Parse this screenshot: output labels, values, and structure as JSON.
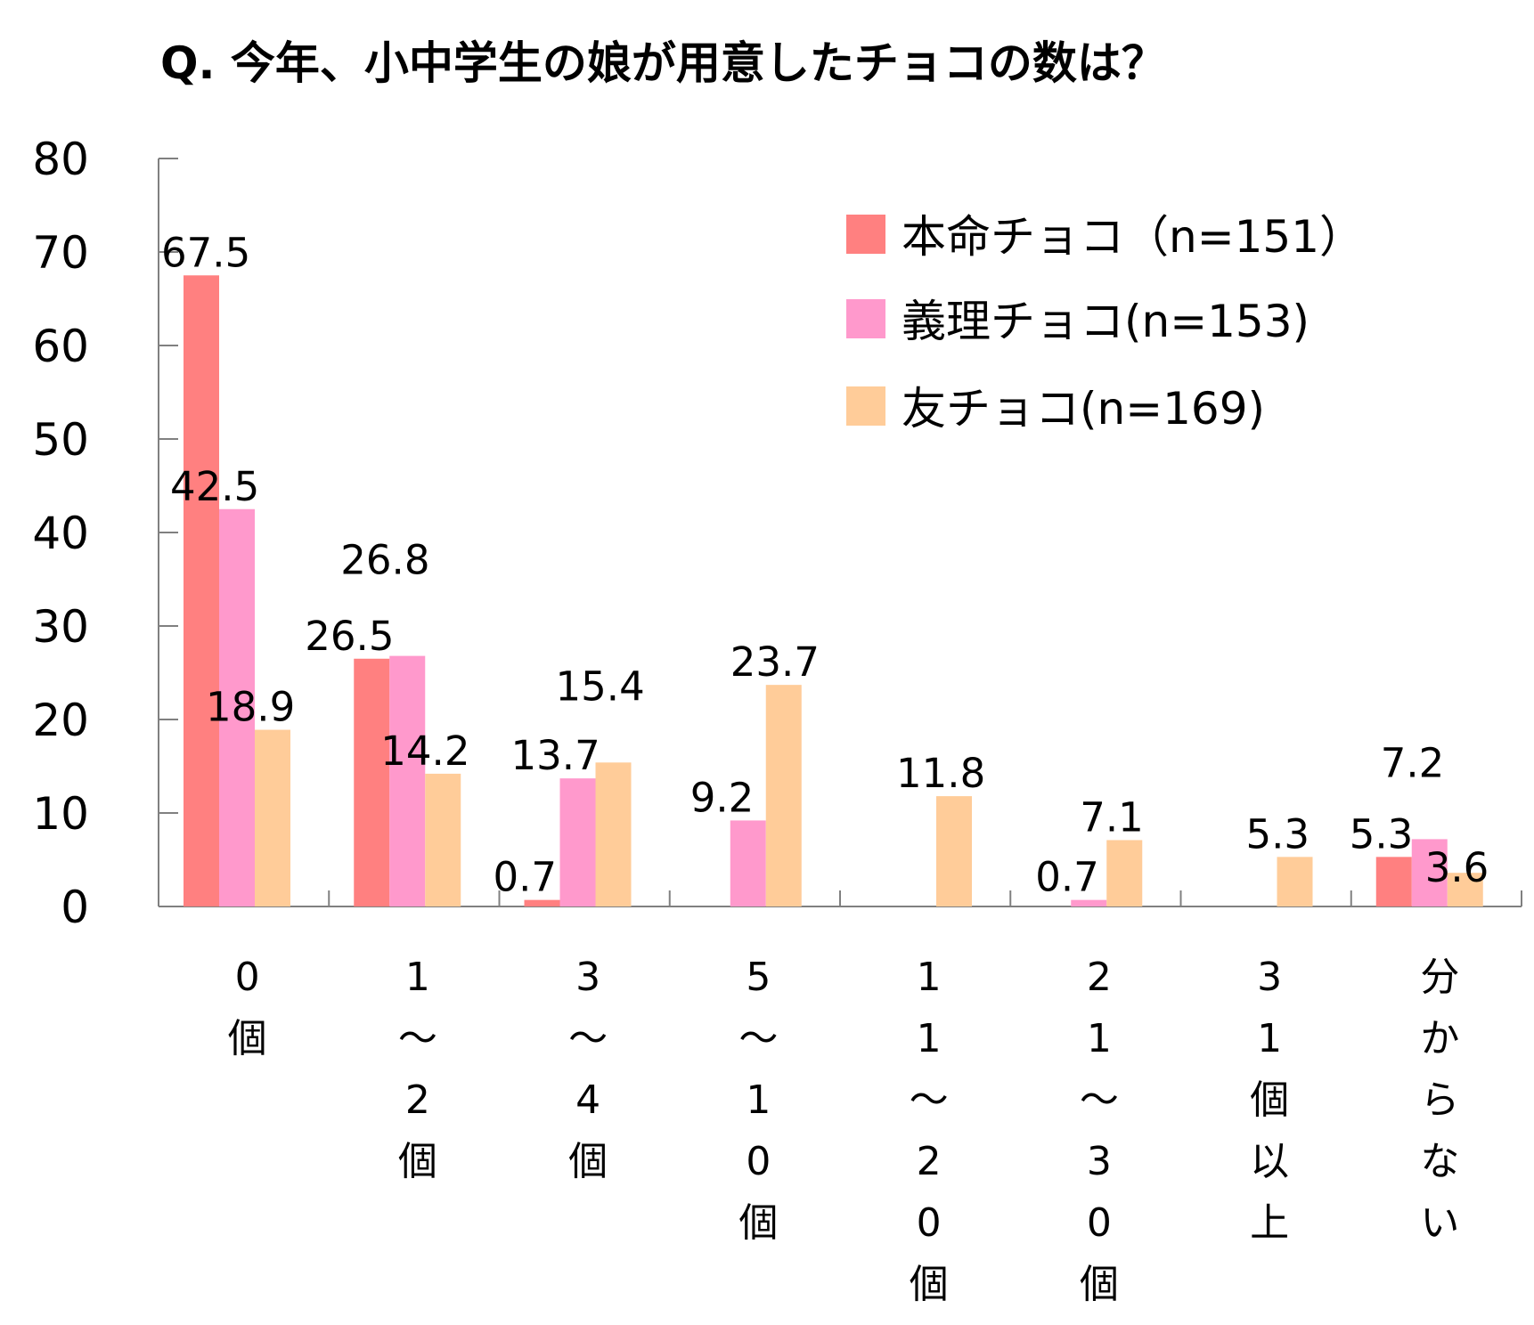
{
  "chart_data": {
    "type": "bar",
    "title": "Q. 今年、小中学生の娘が用意したチョコの数は？",
    "xlabel": "",
    "ylabel": "",
    "ylim": [
      0,
      80
    ],
    "yticks": [
      0,
      10,
      20,
      30,
      40,
      50,
      60,
      70,
      80
    ],
    "grid": false,
    "legend_position": "top-right",
    "categories": [
      "0個",
      "1〜2個",
      "3〜4個",
      "5〜10個",
      "11〜20個",
      "21〜30個",
      "31個以上",
      "分からない"
    ],
    "category_labels": [
      [
        "0",
        "個"
      ],
      [
        "1",
        "〜",
        "2",
        "個"
      ],
      [
        "3",
        "〜",
        "4",
        "個"
      ],
      [
        "5",
        "〜",
        "1",
        "0",
        "個"
      ],
      [
        "1",
        "1",
        "〜",
        "2",
        "0",
        "個"
      ],
      [
        "2",
        "1",
        "〜",
        "3",
        "0",
        "個"
      ],
      [
        "3",
        "1",
        "個",
        "以",
        "上"
      ],
      [
        "分",
        "か",
        "ら",
        "な",
        "い"
      ]
    ],
    "series": [
      {
        "name": "本命チョコ（n=151）",
        "color": "#ff8080",
        "values": [
          67.5,
          26.5,
          0.7,
          null,
          null,
          null,
          null,
          5.3
        ],
        "labels": [
          "67.5",
          "26.5",
          "0.7",
          "",
          "",
          "",
          "",
          "5.3"
        ]
      },
      {
        "name": "義理チョコ(n=153)",
        "color": "#ff99cc",
        "values": [
          42.5,
          26.8,
          13.7,
          9.2,
          null,
          0.7,
          null,
          7.2
        ],
        "labels": [
          "42.5",
          "26.8",
          "13.7",
          "9.2",
          "",
          "0.7",
          "",
          "7.2"
        ]
      },
      {
        "name": "友チョコ(n=169)",
        "color": "#ffcc99",
        "values": [
          18.9,
          14.2,
          15.4,
          23.7,
          11.8,
          7.1,
          5.3,
          3.6
        ],
        "labels": [
          "18.9",
          "14.2",
          "15.4",
          "23.7",
          "11.8",
          "7.1",
          "5.3",
          "3.6"
        ]
      }
    ]
  }
}
